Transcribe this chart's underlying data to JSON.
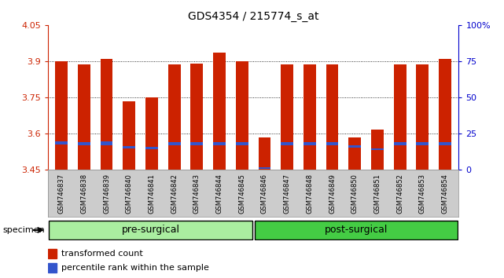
{
  "title": "GDS4354 / 215774_s_at",
  "samples": [
    "GSM746837",
    "GSM746838",
    "GSM746839",
    "GSM746840",
    "GSM746841",
    "GSM746842",
    "GSM746843",
    "GSM746844",
    "GSM746845",
    "GSM746846",
    "GSM746847",
    "GSM746848",
    "GSM746849",
    "GSM746850",
    "GSM746851",
    "GSM746852",
    "GSM746853",
    "GSM746854"
  ],
  "red_values": [
    3.9,
    3.885,
    3.91,
    3.735,
    3.75,
    3.885,
    3.89,
    3.935,
    3.9,
    3.585,
    3.885,
    3.885,
    3.885,
    3.585,
    3.615,
    3.885,
    3.885,
    3.91
  ],
  "blue_heights": [
    0.012,
    0.012,
    0.014,
    0.01,
    0.01,
    0.012,
    0.012,
    0.012,
    0.012,
    0.008,
    0.012,
    0.012,
    0.012,
    0.01,
    0.009,
    0.012,
    0.012,
    0.012
  ],
  "blue_bottoms": [
    3.555,
    3.552,
    3.552,
    3.537,
    3.535,
    3.552,
    3.552,
    3.552,
    3.552,
    3.453,
    3.552,
    3.552,
    3.552,
    3.542,
    3.53,
    3.552,
    3.552,
    3.552
  ],
  "ymin": 3.45,
  "ymax": 4.05,
  "yticks": [
    3.45,
    3.6,
    3.75,
    3.9,
    4.05
  ],
  "ytick_labels": [
    "3.45",
    "3.6",
    "3.75",
    "3.9",
    "4.05"
  ],
  "y2ticks_pct": [
    0,
    25,
    50,
    75,
    100
  ],
  "y2tick_labels": [
    "0",
    "25",
    "50",
    "75",
    "100%"
  ],
  "groups": [
    {
      "label": "pre-surgical",
      "start": 0,
      "end": 9,
      "color": "#aaeea0"
    },
    {
      "label": "post-surgical",
      "start": 9,
      "end": 18,
      "color": "#44cc44"
    }
  ],
  "bar_color": "#cc2200",
  "blue_color": "#3355cc",
  "left_axis_color": "#cc2200",
  "right_axis_color": "#0000cc",
  "bar_width": 0.55,
  "specimen_label": "specimen",
  "legend_items": [
    {
      "color": "#cc2200",
      "label": "transformed count"
    },
    {
      "color": "#3355cc",
      "label": "percentile rank within the sample"
    }
  ],
  "background_color": "#ffffff",
  "plot_bg": "#ffffff",
  "xtick_bg": "#cccccc",
  "grid_lines": [
    3.6,
    3.75,
    3.9
  ],
  "pre_surgical_count": 9,
  "total_count": 18
}
